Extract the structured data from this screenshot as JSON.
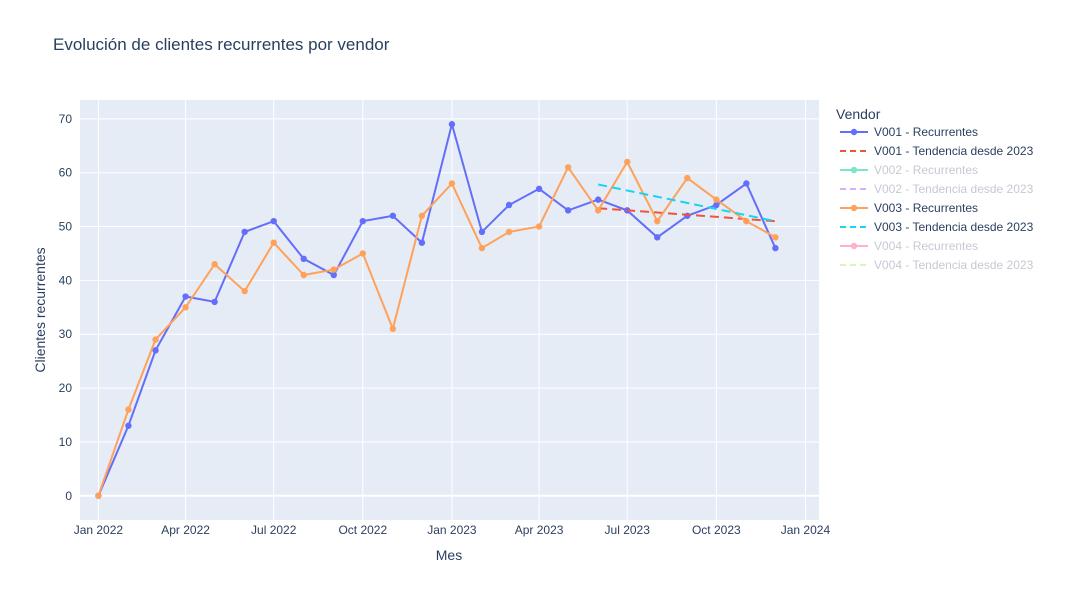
{
  "chart_data": {
    "type": "line",
    "title": "Evolución de clientes recurrentes por vendor",
    "xlabel": "Mes",
    "ylabel": "Clientes recurrentes",
    "x_ticks": [
      "Jan 2022",
      "Apr 2022",
      "Jul 2022",
      "Oct 2022",
      "Jan 2023",
      "Apr 2023",
      "Jul 2023",
      "Oct 2023",
      "Jan 2024"
    ],
    "xlim": [
      "2021-12-13",
      "2024-01-15"
    ],
    "ylim": [
      -4.5,
      73.5
    ],
    "y_ticks": [
      0,
      10,
      20,
      30,
      40,
      50,
      60,
      70
    ],
    "grid": true,
    "plot_background": "#e5ecf6",
    "legend": {
      "title": "Vendor",
      "position": "right"
    },
    "series": [
      {
        "name": "V001 - Recurrentes",
        "color": "#636efa",
        "mode": "lines+markers",
        "dash": "solid",
        "visible": true,
        "x": [
          "2022-01-01",
          "2022-02-01",
          "2022-03-01",
          "2022-04-01",
          "2022-05-01",
          "2022-06-01",
          "2022-07-01",
          "2022-08-01",
          "2022-09-01",
          "2022-10-01",
          "2022-11-01",
          "2022-12-01",
          "2023-01-01",
          "2023-02-01",
          "2023-03-01",
          "2023-04-01",
          "2023-05-01",
          "2023-06-01",
          "2023-07-01",
          "2023-08-01",
          "2023-09-01",
          "2023-10-01",
          "2023-11-01",
          "2023-12-01"
        ],
        "y": [
          0,
          13,
          27,
          37,
          36,
          49,
          51,
          44,
          41,
          51,
          52,
          47,
          69,
          49,
          54,
          57,
          53,
          55,
          53,
          48,
          52,
          54,
          58,
          46
        ]
      },
      {
        "name": "V001 - Tendencia desde 2023",
        "color": "#ef553b",
        "mode": "lines",
        "dash": "dash",
        "visible": true,
        "x": [
          "2023-06-01",
          "2023-12-01"
        ],
        "y": [
          53.4,
          51.0
        ]
      },
      {
        "name": "V002 - Recurrentes",
        "color": "#00cc96",
        "mode": "lines+markers",
        "dash": "solid",
        "visible": false,
        "x": [],
        "y": []
      },
      {
        "name": "V002 - Tendencia desde 2023",
        "color": "#ab63fa",
        "mode": "lines",
        "dash": "dash",
        "visible": false,
        "x": [],
        "y": []
      },
      {
        "name": "V003 - Recurrentes",
        "color": "#ffa15a",
        "mode": "lines+markers",
        "dash": "solid",
        "visible": true,
        "x": [
          "2022-01-01",
          "2022-02-01",
          "2022-03-01",
          "2022-04-01",
          "2022-05-01",
          "2022-06-01",
          "2022-07-01",
          "2022-08-01",
          "2022-09-01",
          "2022-10-01",
          "2022-11-01",
          "2022-12-01",
          "2023-01-01",
          "2023-02-01",
          "2023-03-01",
          "2023-04-01",
          "2023-05-01",
          "2023-06-01",
          "2023-07-01",
          "2023-08-01",
          "2023-09-01",
          "2023-10-01",
          "2023-11-01",
          "2023-12-01"
        ],
        "y": [
          0,
          16,
          29,
          35,
          43,
          38,
          47,
          41,
          42,
          45,
          31,
          52,
          58,
          46,
          49,
          50,
          61,
          53,
          62,
          51,
          59,
          55,
          51,
          48
        ]
      },
      {
        "name": "V003 - Tendencia desde 2023",
        "color": "#19d3f3",
        "mode": "lines",
        "dash": "dash",
        "visible": true,
        "x": [
          "2023-06-01",
          "2023-12-01"
        ],
        "y": [
          57.8,
          51.0
        ]
      },
      {
        "name": "V004 - Recurrentes",
        "color": "#ff6692",
        "mode": "lines+markers",
        "dash": "solid",
        "visible": false,
        "x": [],
        "y": []
      },
      {
        "name": "V004 - Tendencia desde 2023",
        "color": "#b6e880",
        "mode": "lines",
        "dash": "dash",
        "visible": false,
        "x": [],
        "y": []
      }
    ]
  }
}
